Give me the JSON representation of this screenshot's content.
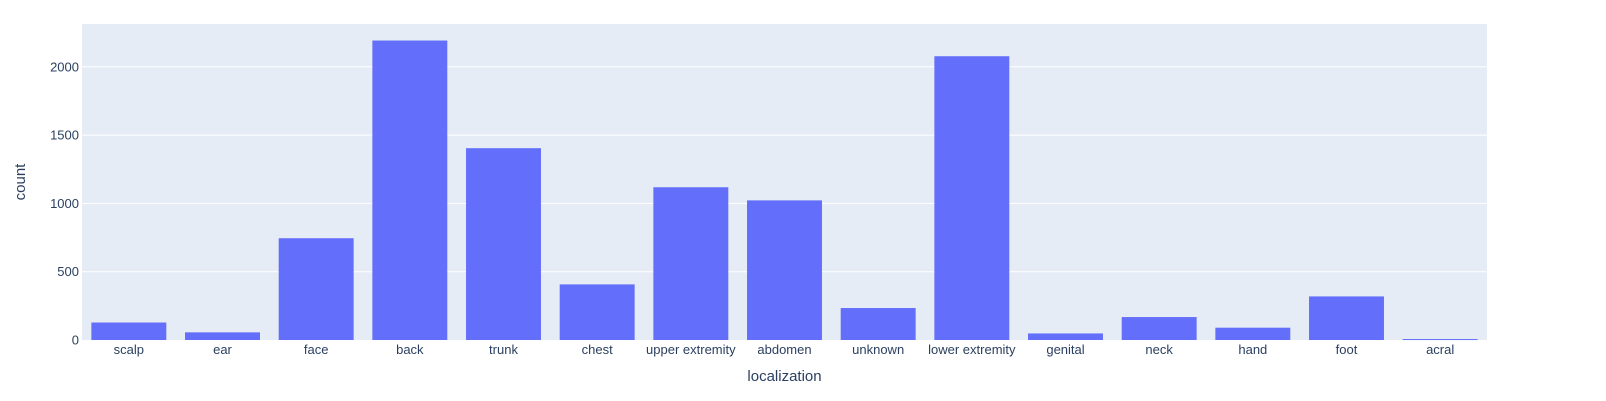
{
  "chart_data": {
    "type": "bar",
    "title": "",
    "xlabel": "localization",
    "ylabel": "count",
    "categories": [
      "scalp",
      "ear",
      "face",
      "back",
      "trunk",
      "chest",
      "upper extremity",
      "abdomen",
      "unknown",
      "lower extremity",
      "genital",
      "neck",
      "hand",
      "foot",
      "acral"
    ],
    "values": [
      128,
      56,
      745,
      2192,
      1404,
      407,
      1118,
      1022,
      234,
      2077,
      48,
      168,
      90,
      319,
      7
    ],
    "ylim": [
      0,
      2313
    ],
    "yticks": [
      0,
      500,
      1000,
      1500,
      2000
    ],
    "grid": true,
    "legend": "none",
    "colors": {
      "bar": "#636efa",
      "plot_bg": "#e5ecf6",
      "grid": "#ffffff",
      "text": "#2a3f5f"
    }
  }
}
